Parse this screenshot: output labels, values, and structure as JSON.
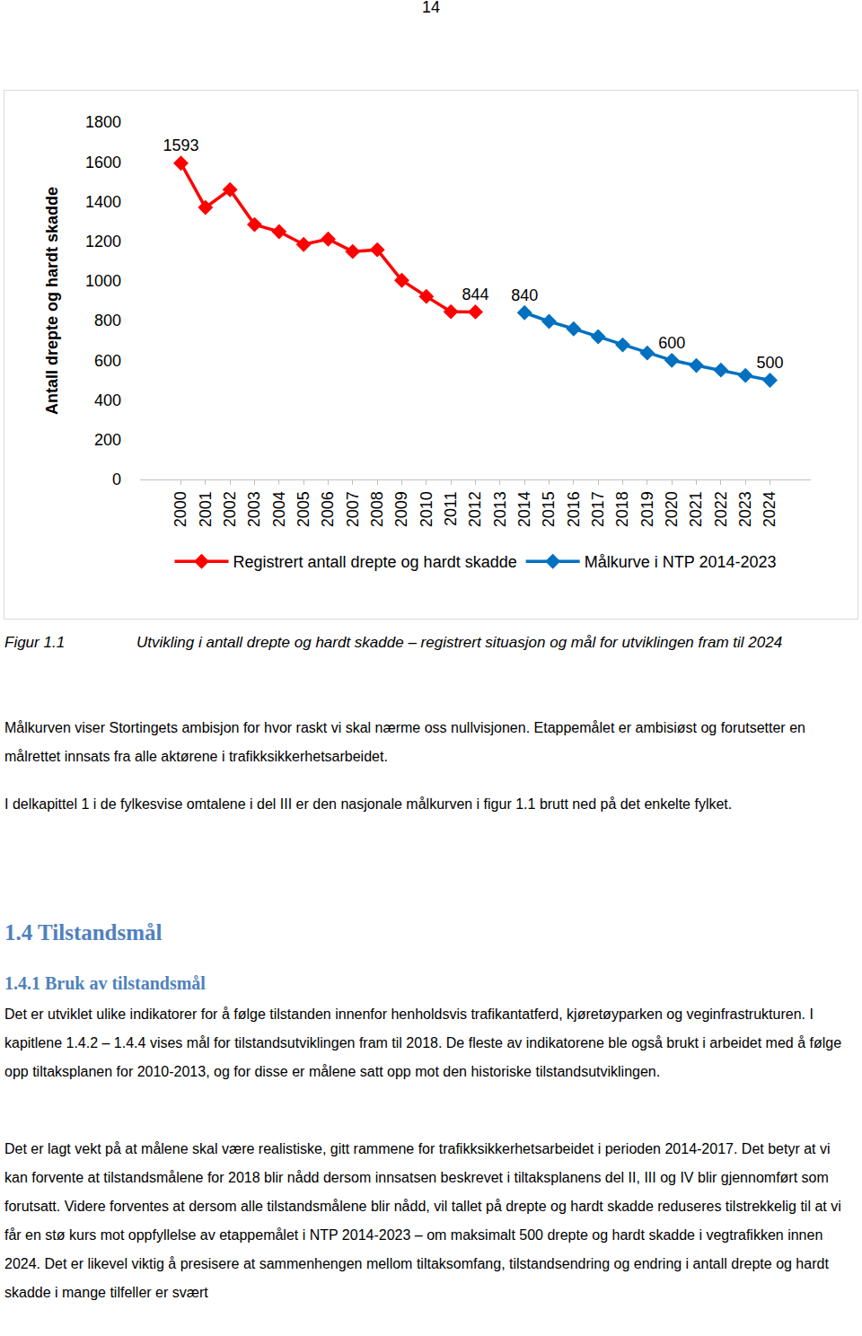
{
  "page_number": "14",
  "chart_data": {
    "type": "line",
    "categories": [
      "2000",
      "2001",
      "2002",
      "2003",
      "2004",
      "2005",
      "2006",
      "2007",
      "2008",
      "2009",
      "2010",
      "2011",
      "2012",
      "2013",
      "2014",
      "2015",
      "2016",
      "2017",
      "2018",
      "2019",
      "2020",
      "2021",
      "2022",
      "2023",
      "2024"
    ],
    "series": [
      {
        "name": "Registrert antall drepte og hardt skadde",
        "color": "#ff0000",
        "values": [
          1593,
          1370,
          1460,
          1284,
          1248,
          1184,
          1211,
          1148,
          1157,
          1003,
          922,
          845,
          844,
          null,
          null,
          null,
          null,
          null,
          null,
          null,
          null,
          null,
          null,
          null,
          null
        ],
        "value_labels": [
          "1593",
          null,
          null,
          null,
          null,
          null,
          null,
          null,
          null,
          null,
          null,
          null,
          "844",
          null,
          null,
          null,
          null,
          null,
          null,
          null,
          null,
          null,
          null,
          null,
          null
        ]
      },
      {
        "name": "Målkurve i NTP 2014-2023",
        "color": "#0070c0",
        "values": [
          null,
          null,
          null,
          null,
          null,
          null,
          null,
          null,
          null,
          null,
          null,
          null,
          null,
          null,
          840,
          796,
          759,
          719,
          678,
          637,
          600,
          574,
          551,
          524,
          500
        ],
        "value_labels": [
          null,
          null,
          null,
          null,
          null,
          null,
          null,
          null,
          null,
          null,
          null,
          null,
          null,
          null,
          "840",
          null,
          null,
          null,
          null,
          null,
          "600",
          null,
          null,
          null,
          "500"
        ]
      }
    ],
    "y_label": "Antall drepte og hardt skadde",
    "ylim": [
      0,
      1800
    ],
    "yticks": [
      0,
      200,
      400,
      600,
      800,
      1000,
      1200,
      1400,
      1600,
      1800
    ],
    "grid": false,
    "legend": "bottom",
    "marker": "diamond",
    "line_style": "solid",
    "data_labels": true
  },
  "caption": {
    "label": "Figur 1.1",
    "text": "Utvikling i antall drepte og hardt skadde – registrert situasjon og mål for utviklingen fram til 2024"
  },
  "paragraphs": [
    "Målkurven viser Stortingets ambisjon for hvor raskt vi skal nærme oss nullvisjonen. Etappemålet er ambisiøst og forutsetter en målrettet innsats fra alle aktørene i trafikksikkerhetsarbeidet.",
    "I delkapittel 1 i de fylkesvise omtalene i del III er den nasjonale målkurven i figur 1.1 brutt ned på det enkelte fylket."
  ],
  "section": {
    "heading": "1.4 Tilstandsmål",
    "subheading": "1.4.1 Bruk av tilstandsmål",
    "paragraphs": [
      "Det er utviklet ulike indikatorer for å følge tilstanden innenfor henholdsvis trafikantatferd, kjøretøyparken og veginfrastrukturen. I kapitlene 1.4.2 – 1.4.4 vises mål for tilstandsutviklingen fram til 2018. De fleste av indikatorene ble også brukt i arbeidet med å følge opp tiltaksplanen for 2010-2013, og for disse er målene satt opp mot den historiske tilstandsutviklingen.",
      "Det er lagt vekt på at målene skal være realistiske, gitt rammene for trafikksikkerhetsarbeidet i perioden 2014-2017. Det betyr at vi kan forvente at tilstandsmålene for 2018 blir nådd dersom innsatsen beskrevet i tiltaksplanens del II, III og IV blir gjennomført som forutsatt. Videre forventes at dersom alle tilstandsmålene blir nådd, vil tallet på drepte og hardt skadde reduseres tilstrekkelig til at vi får en stø kurs mot oppfyllelse av etappemålet i NTP 2014-2023 – om maksimalt 500 drepte og hardt skadde i vegtrafikken innen 2024. Det er likevel viktig å presisere at sammenhengen mellom tiltaksomfang, tilstandsendring og endring i antall drepte og hardt skadde i mange tilfeller er svært"
    ]
  }
}
